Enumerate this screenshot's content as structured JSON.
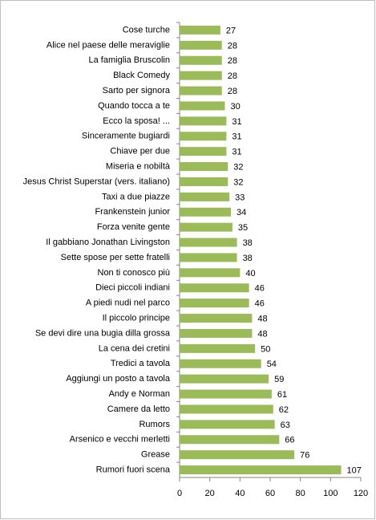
{
  "chart_data": {
    "type": "bar",
    "orientation": "horizontal",
    "categories": [
      "Cose turche",
      "Alice nel paese delle meraviglie",
      "La famiglia  Bruscolin",
      "Black Comedy",
      "Sarto per signora",
      "Quando tocca a te",
      "Ecco la sposa!  ...",
      "Sinceramente bugiardi",
      "Chiave per due",
      "Miseria e nobiltà",
      "Jesus Christ Superstar (vers. italiano)",
      "Taxi a due piazze",
      "Frankenstein junior",
      "Forza venite gente",
      "Il gabbiano  Jonathan Livingston",
      "Sette spose per sette fratelli",
      "Non ti conosco più",
      "Dieci piccoli indiani",
      "A piedi nudi nel parco",
      "Il piccolo principe",
      "Se devi dire una bugia dilla grossa",
      "La cena dei cretini",
      "Tredici a tavola",
      "Aggiungi un posto a tavola",
      "Andy e Norman",
      "Camere da letto",
      "Rumors",
      "Arsenico e vecchi merletti",
      "Grease",
      "Rumori fuori scena"
    ],
    "values": [
      27,
      28,
      28,
      28,
      28,
      30,
      31,
      31,
      31,
      32,
      32,
      33,
      34,
      35,
      38,
      38,
      40,
      46,
      46,
      48,
      48,
      50,
      54,
      59,
      61,
      62,
      63,
      66,
      76,
      107
    ],
    "color": "#9bbb59",
    "xlim": [
      0,
      120
    ],
    "xticks": [
      0,
      20,
      40,
      60,
      80,
      100,
      120
    ]
  }
}
